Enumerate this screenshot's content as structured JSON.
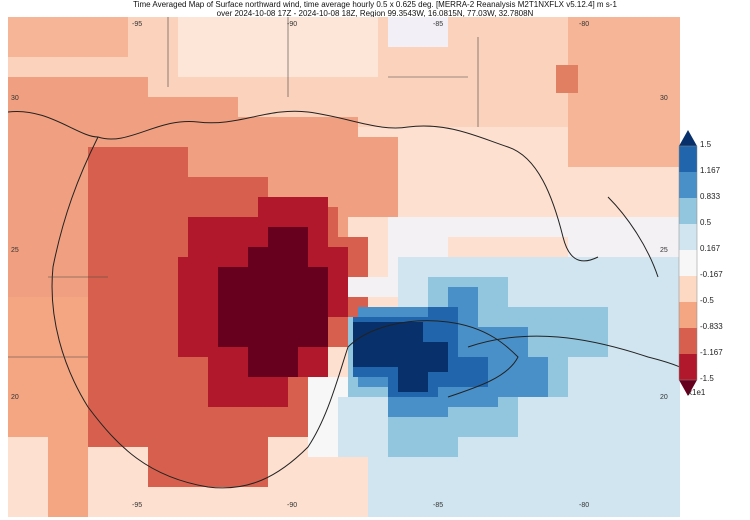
{
  "title": {
    "line1": "Time Averaged Map of Surface northward wind, time average hourly 0.5 x 0.625 deg. [MERRA-2 Reanalysis M2T1NXFLX v5.12.4] m s-1",
    "line2": "over 2024-10-08 17Z - 2024-10-08 18Z, Region 99.3543W, 16.0815N, 77.03W, 32.7808N"
  },
  "map": {
    "lon_ticks_top": [
      "-95",
      "-90",
      "-85",
      "-80"
    ],
    "lon_ticks_bottom": [
      "-95",
      "-90",
      "-85",
      "-80"
    ],
    "lat_ticks_left": [
      "30",
      "25",
      "20"
    ],
    "lat_ticks_right": [
      "30",
      "25",
      "20"
    ]
  },
  "colorbar": {
    "labels": [
      "1.5",
      "1.167",
      "0.833",
      "0.5",
      "0.167",
      "-0.167",
      "-0.5",
      "-0.833",
      "-1.167",
      "-1.5"
    ],
    "colors": [
      "#08306b",
      "#2166ac",
      "#4a90c8",
      "#92c5de",
      "#d1e5f0",
      "#f7f7f7",
      "#fdd9c4",
      "#f4a582",
      "#d6604d",
      "#b2182b",
      "#67001f"
    ],
    "scale": "x1e1"
  }
}
